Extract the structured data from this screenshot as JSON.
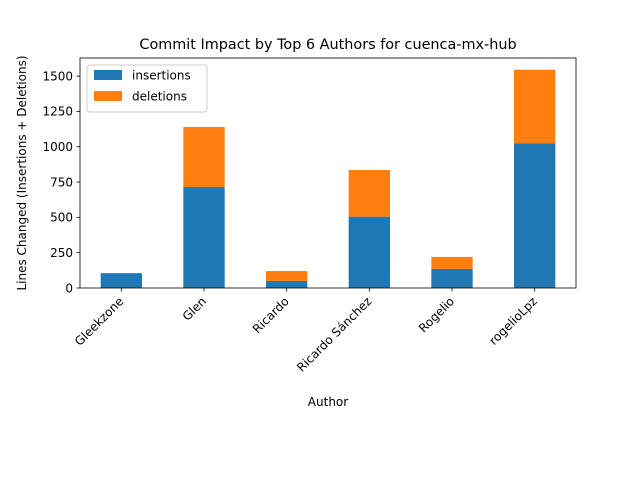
{
  "chart_data": {
    "type": "bar",
    "stacked": true,
    "title": "Commit Impact by Top 6 Authors for cuenca-mx-hub",
    "xlabel": "Author",
    "ylabel": "Lines Changed (Insertions + Deletions)",
    "categories": [
      "Gleekzone",
      "Glen",
      "Ricardo",
      "Ricardo Sánchez",
      "Rogelio",
      "rogelioLpz"
    ],
    "series": [
      {
        "name": "insertions",
        "color": "#1f77b4",
        "values": [
          105,
          715,
          50,
          505,
          135,
          1025
        ]
      },
      {
        "name": "deletions",
        "color": "#ff7f0e",
        "values": [
          0,
          425,
          70,
          330,
          85,
          520
        ]
      }
    ],
    "ylim": [
      0,
      1628
    ],
    "yticks": [
      0,
      250,
      500,
      750,
      1000,
      1250,
      1500
    ],
    "ytick_labels": [
      "0",
      "250",
      "500",
      "750",
      "1000",
      "1250",
      "1500"
    ],
    "grid": false,
    "legend_position": "top-left"
  }
}
